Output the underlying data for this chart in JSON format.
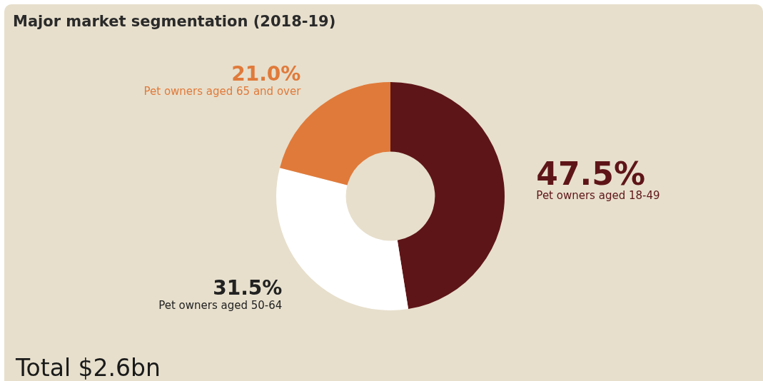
{
  "chart_data": {
    "type": "donut",
    "title": "Major market segmentation (2018-19)",
    "categories": [
      "Pet owners aged 18-49",
      "Pet owners aged 50-64",
      "Pet owners aged 65 and over"
    ],
    "values": [
      47.5,
      31.5,
      21.0
    ],
    "colors": [
      "#5e1518",
      "#ffffff",
      "#e07a3a"
    ],
    "value_labels": [
      "47.5%",
      "31.5%",
      "21.0%"
    ],
    "annotations": [
      "Total $2.6bn"
    ],
    "legend": false
  }
}
